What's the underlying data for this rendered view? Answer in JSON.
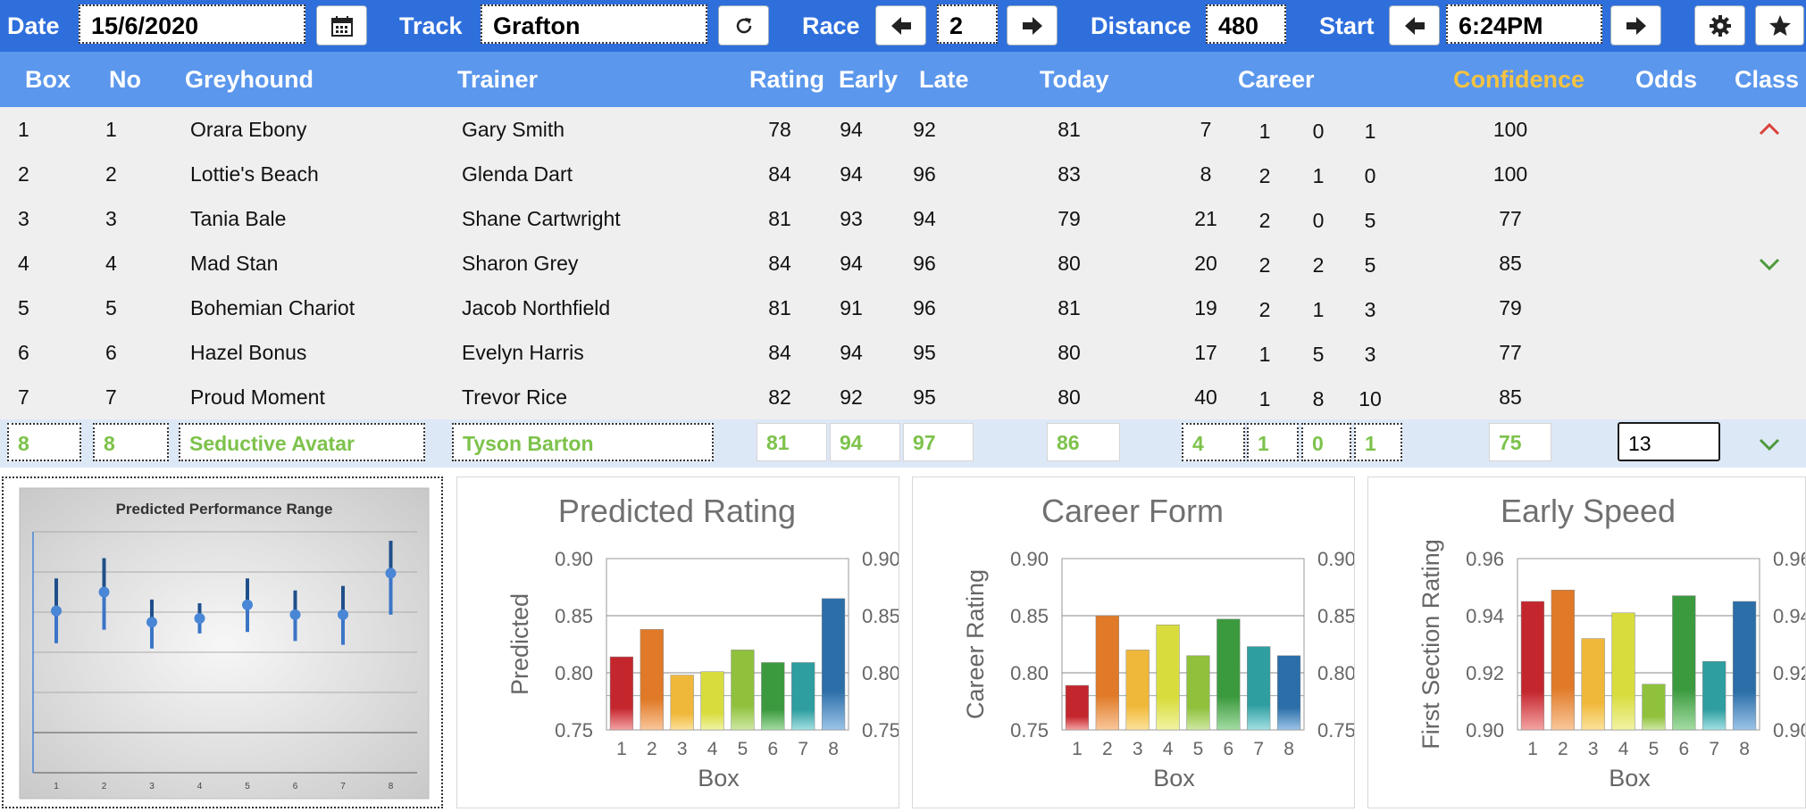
{
  "toolbar": {
    "date_label": "Date",
    "date_value": "15/6/2020",
    "track_label": "Track",
    "track_value": "Grafton",
    "race_label": "Race",
    "race_value": "2",
    "distance_label": "Distance",
    "distance_value": "480",
    "start_label": "Start",
    "start_value": "6:24PM",
    "icons": [
      "calendar-icon",
      "refresh-icon",
      "arrow-left-icon",
      "arrow-right-icon",
      "gear-icon",
      "star-icon"
    ]
  },
  "columns": {
    "box": "Box",
    "no": "No",
    "greyhound": "Greyhound",
    "trainer": "Trainer",
    "rating": "Rating",
    "early": "Early",
    "late": "Late",
    "today": "Today",
    "career": "Career",
    "confidence": "Confidence",
    "odds": "Odds",
    "class": "Class"
  },
  "colors": {
    "header_bg": "#5b97ec",
    "topbar_bg": "#2f6fdc",
    "confidence_label": "#f5c342",
    "selected_text": "#7dc24b",
    "up": "#d9413a",
    "down": "#4c9a3c"
  },
  "rows": [
    {
      "box": "1",
      "no": "1",
      "greyhound": "Orara Ebony",
      "trainer": "Gary Smith",
      "rating": "78",
      "early": "94",
      "late": "92",
      "today": "81",
      "c1": "7",
      "c2": "1",
      "c3": "0",
      "c4": "1",
      "confidence": "100",
      "class_icon": "chevron-up"
    },
    {
      "box": "2",
      "no": "2",
      "greyhound": "Lottie's Beach",
      "trainer": "Glenda Dart",
      "rating": "84",
      "early": "94",
      "late": "96",
      "today": "83",
      "c1": "8",
      "c2": "2",
      "c3": "1",
      "c4": "0",
      "confidence": "100",
      "class_icon": ""
    },
    {
      "box": "3",
      "no": "3",
      "greyhound": "Tania Bale",
      "trainer": "Shane Cartwright",
      "rating": "81",
      "early": "93",
      "late": "94",
      "today": "79",
      "c1": "21",
      "c2": "2",
      "c3": "0",
      "c4": "5",
      "confidence": "77",
      "class_icon": ""
    },
    {
      "box": "4",
      "no": "4",
      "greyhound": "Mad Stan",
      "trainer": "Sharon Grey",
      "rating": "84",
      "early": "94",
      "late": "96",
      "today": "80",
      "c1": "20",
      "c2": "2",
      "c3": "2",
      "c4": "5",
      "confidence": "85",
      "class_icon": "chevron-down"
    },
    {
      "box": "5",
      "no": "5",
      "greyhound": "Bohemian Chariot",
      "trainer": "Jacob Northfield",
      "rating": "81",
      "early": "91",
      "late": "96",
      "today": "81",
      "c1": "19",
      "c2": "2",
      "c3": "1",
      "c4": "3",
      "confidence": "79",
      "class_icon": ""
    },
    {
      "box": "6",
      "no": "6",
      "greyhound": "Hazel Bonus",
      "trainer": "Evelyn Harris",
      "rating": "84",
      "early": "94",
      "late": "95",
      "today": "80",
      "c1": "17",
      "c2": "1",
      "c3": "5",
      "c4": "3",
      "confidence": "77",
      "class_icon": ""
    },
    {
      "box": "7",
      "no": "7",
      "greyhound": "Proud Moment",
      "trainer": "Trevor Rice",
      "rating": "82",
      "early": "92",
      "late": "95",
      "today": "80",
      "c1": "40",
      "c2": "1",
      "c3": "8",
      "c4": "10",
      "confidence": "85",
      "class_icon": ""
    }
  ],
  "selected": {
    "box": "8",
    "no": "8",
    "greyhound": "Seductive Avatar",
    "trainer": "Tyson Barton",
    "rating": "81",
    "early": "94",
    "late": "97",
    "today": "86",
    "c1": "4",
    "c2": "1",
    "c3": "0",
    "c4": "1",
    "confidence": "75",
    "odds": "13",
    "class_icon": "chevron-down"
  },
  "chart_data": [
    {
      "type": "scatter",
      "title": "Predicted Performance Range",
      "categories": [
        "1",
        "2",
        "3",
        "4",
        "5",
        "6",
        "7",
        "8"
      ],
      "series": [
        {
          "values": [
            0.815,
            0.84,
            0.8,
            0.805,
            0.823,
            0.81,
            0.81,
            0.865
          ]
        },
        {
          "values": [
            0.772,
            0.79,
            0.765,
            0.785,
            0.787,
            0.775,
            0.77,
            0.81
          ]
        },
        {
          "values": [
            0.858,
            0.885,
            0.83,
            0.825,
            0.858,
            0.842,
            0.848,
            0.908
          ]
        }
      ],
      "ylim": [
        0.6,
        0.92
      ]
    },
    {
      "type": "bar",
      "title": "Predicted Rating",
      "categories": [
        "1",
        "2",
        "3",
        "4",
        "5",
        "6",
        "7",
        "8"
      ],
      "values": [
        0.814,
        0.838,
        0.798,
        0.801,
        0.82,
        0.809,
        0.809,
        0.865
      ],
      "xlabel": "Box",
      "ylabel": "Predicted",
      "ylim": [
        0.75,
        0.9
      ],
      "yticks": [
        "0.90",
        "0.85",
        "0.80",
        "0.75"
      ]
    },
    {
      "type": "bar",
      "title": "Career Form",
      "categories": [
        "1",
        "2",
        "3",
        "4",
        "5",
        "6",
        "7",
        "8"
      ],
      "values": [
        0.789,
        0.85,
        0.82,
        0.842,
        0.815,
        0.847,
        0.823,
        0.815
      ],
      "xlabel": "Box",
      "ylabel": "Career Rating",
      "ylim": [
        0.75,
        0.9
      ],
      "yticks": [
        "0.90",
        "0.85",
        "0.80",
        "0.75"
      ]
    },
    {
      "type": "bar",
      "title": "Early Speed",
      "categories": [
        "1",
        "2",
        "3",
        "4",
        "5",
        "6",
        "7",
        "8"
      ],
      "values": [
        0.945,
        0.949,
        0.932,
        0.941,
        0.916,
        0.947,
        0.924,
        0.945
      ],
      "xlabel": "Box",
      "ylabel": "First Section Rating",
      "ylim": [
        0.9,
        0.96
      ],
      "yticks": [
        "0.96",
        "0.94",
        "0.92",
        "0.90"
      ]
    }
  ]
}
